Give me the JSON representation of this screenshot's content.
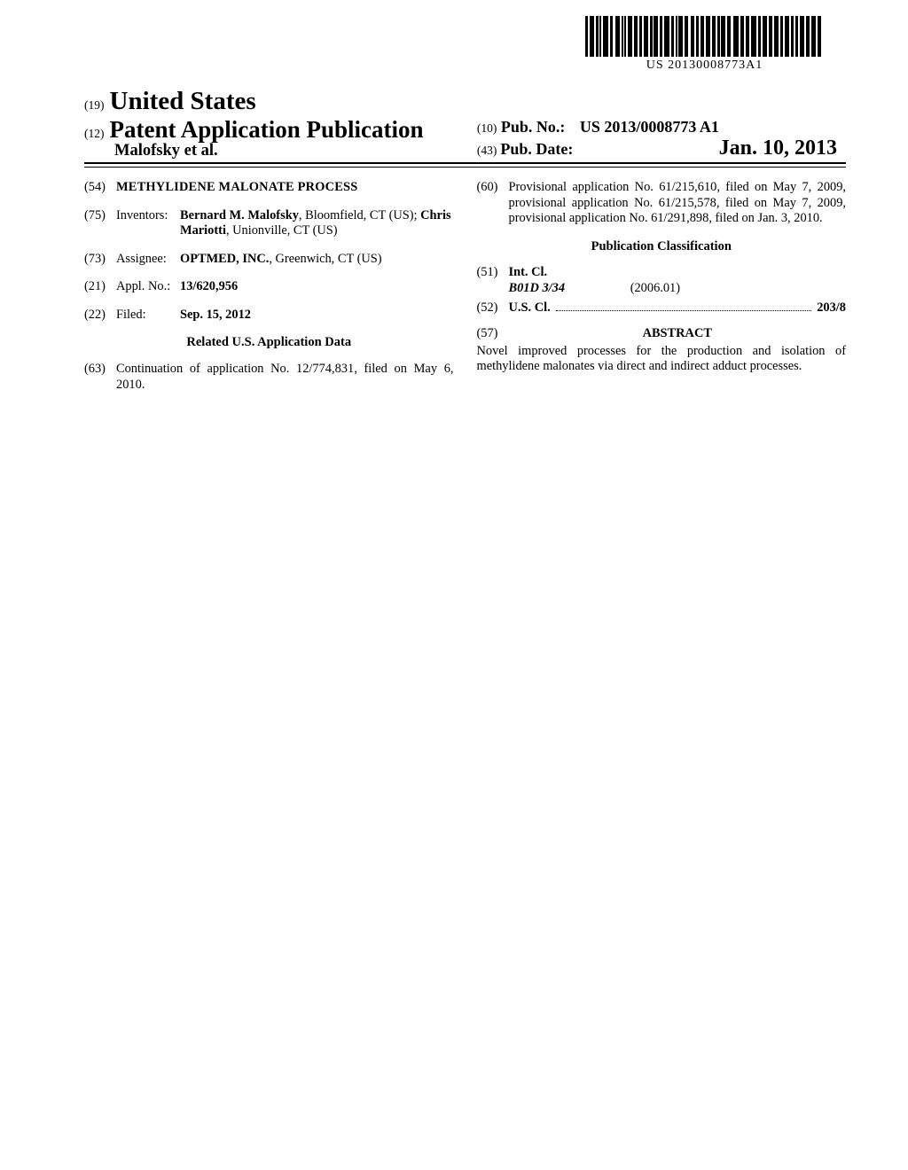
{
  "barcode": {
    "text": "US 20130008773A1",
    "pattern": [
      3,
      2,
      5,
      2,
      3,
      1,
      2,
      2,
      6,
      2,
      3,
      3,
      5,
      2,
      2,
      1,
      2,
      2,
      5,
      2,
      4,
      2,
      3,
      2,
      5,
      2,
      3,
      1,
      5,
      2,
      3,
      2,
      6,
      2,
      3,
      2,
      2,
      1,
      5,
      2,
      4,
      3,
      4,
      2,
      3,
      2,
      4,
      2,
      5,
      2,
      4,
      2,
      3,
      1,
      5,
      2,
      4,
      3,
      6,
      2,
      4,
      2,
      4,
      2,
      6,
      2,
      3,
      2,
      5,
      2,
      4,
      2,
      5,
      2,
      3,
      2,
      5,
      2,
      3,
      2,
      3,
      2,
      5,
      2,
      4,
      2,
      5,
      2,
      4,
      3
    ]
  },
  "top": {
    "code19": "(19)",
    "country": "United States",
    "code12": "(12)",
    "pub_type": "Patent Application Publication",
    "authors": "Malofsky et al.",
    "code10": "(10)",
    "pubno_label": "Pub. No.:",
    "pubno": "US 2013/0008773 A1",
    "code43": "(43)",
    "pubdate_label": "Pub. Date:",
    "pubdate": "Jan. 10, 2013"
  },
  "left": {
    "f54": {
      "code": "(54)",
      "title": "METHYLIDENE MALONATE PROCESS"
    },
    "f75": {
      "code": "(75)",
      "label": "Inventors:",
      "value_a": "Bernard M. Malofsky",
      "value_a_loc": ", Bloomfield, CT (US); ",
      "value_b": "Chris Mariotti",
      "value_b_loc": ", Unionville, CT (US)"
    },
    "f73": {
      "code": "(73)",
      "label": "Assignee:",
      "value_a": "OPTMED, INC.",
      "value_b": ", Greenwich, CT (US)"
    },
    "f21": {
      "code": "(21)",
      "label": "Appl. No.:",
      "value": "13/620,956"
    },
    "f22": {
      "code": "(22)",
      "label": "Filed:",
      "value": "Sep. 15, 2012"
    },
    "related_heading": "Related U.S. Application Data",
    "f63": {
      "code": "(63)",
      "text": "Continuation of application No. 12/774,831, filed on May 6, 2010."
    }
  },
  "right": {
    "f60": {
      "code": "(60)",
      "text": "Provisional application No. 61/215,610, filed on May 7, 2009, provisional application No. 61/215,578, filed on May 7, 2009, provisional application No. 61/291,898, filed on Jan. 3, 2010."
    },
    "pubclass_heading": "Publication Classification",
    "f51": {
      "code": "(51)",
      "label": "Int. Cl.",
      "class": "B01D 3/34",
      "edition": "(2006.01)"
    },
    "f52": {
      "code": "(52)",
      "label": "U.S. Cl.",
      "value": "203/8"
    },
    "f57": {
      "code": "(57)",
      "heading": "ABSTRACT",
      "text": "Novel improved processes for the production and isolation of methylidene malonates via direct and indirect adduct processes."
    }
  }
}
